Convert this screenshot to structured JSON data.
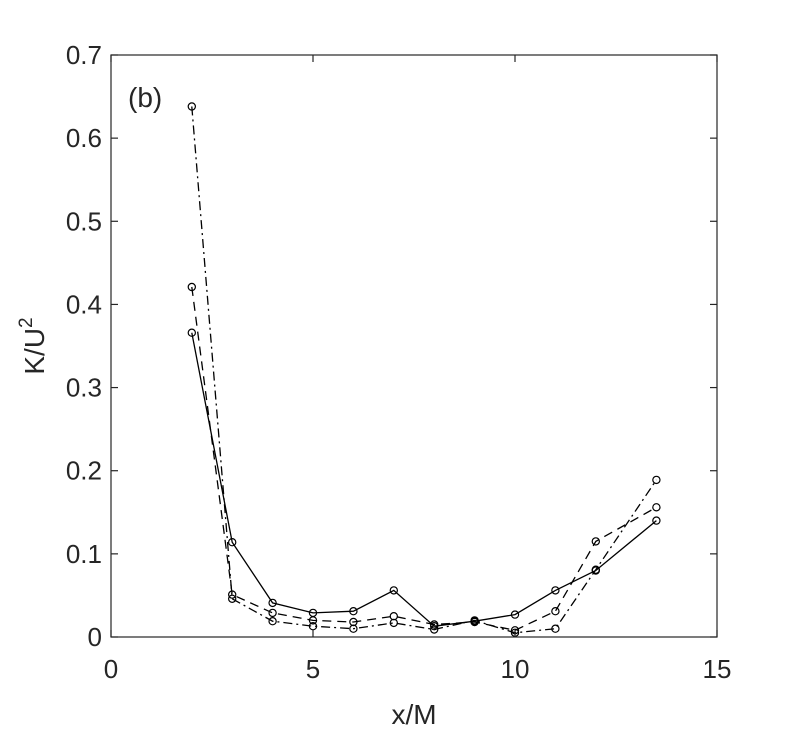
{
  "chart_data": {
    "type": "line",
    "panel_label": "(b)",
    "xlabel": "x/M",
    "ylabel_base": "K/U",
    "ylabel_superscript": "2",
    "xlim": [
      0,
      15
    ],
    "ylim": [
      0,
      0.7
    ],
    "xticks": [
      0,
      5,
      10,
      15
    ],
    "xtick_labels": [
      "0",
      "5",
      "10",
      "15"
    ],
    "yticks": [
      0,
      0.1,
      0.2,
      0.3,
      0.4,
      0.5,
      0.6,
      0.7
    ],
    "ytick_labels": [
      "0",
      "0.1",
      "0.2",
      "0.3",
      "0.4",
      "0.5",
      "0.6",
      "0.7"
    ],
    "grid": false,
    "marker": "open-circle",
    "line_color": "#000000",
    "series": [
      {
        "line_style": "solid",
        "x": [
          2,
          3,
          4,
          5,
          6,
          7,
          8,
          9,
          10,
          11,
          12,
          13.5
        ],
        "y": [
          0.366,
          0.114,
          0.041,
          0.029,
          0.031,
          0.056,
          0.013,
          0.019,
          0.027,
          0.056,
          0.08,
          0.14
        ]
      },
      {
        "line_style": "dashed",
        "x": [
          2,
          3,
          4,
          5,
          6,
          7,
          8,
          9,
          10,
          11,
          12,
          13.5
        ],
        "y": [
          0.421,
          0.051,
          0.029,
          0.02,
          0.018,
          0.025,
          0.015,
          0.018,
          0.008,
          0.031,
          0.115,
          0.156
        ]
      },
      {
        "line_style": "dash-dot",
        "x": [
          2,
          3,
          4,
          5,
          6,
          7,
          8,
          9,
          10,
          11,
          12,
          13.5
        ],
        "y": [
          0.638,
          0.046,
          0.019,
          0.013,
          0.01,
          0.017,
          0.009,
          0.02,
          0.005,
          0.01,
          0.081,
          0.189
        ]
      }
    ]
  }
}
